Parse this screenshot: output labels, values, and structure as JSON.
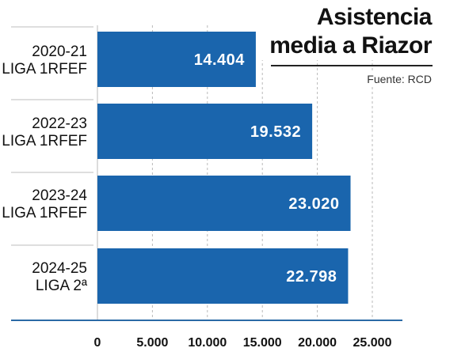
{
  "chart_data": {
    "type": "bar",
    "orientation": "horizontal",
    "title": [
      "Asistencia",
      "media a Riazor"
    ],
    "source": "Fuente: RCD",
    "categories": [
      [
        "2020-21",
        "LIGA 1RFEF"
      ],
      [
        "2022-23",
        "LIGA 1RFEF"
      ],
      [
        "2023-24",
        "LIGA 1RFEF"
      ],
      [
        "2024-25",
        "LIGA 2ª"
      ]
    ],
    "values": [
      14404,
      19532,
      23020,
      22798
    ],
    "value_labels": [
      "14.404",
      "19.532",
      "23.020",
      "22.798"
    ],
    "xlim": [
      0,
      25000
    ],
    "xticks": [
      0,
      5000,
      10000,
      15000,
      20000,
      25000
    ],
    "xtick_labels": [
      "0",
      "5.000",
      "10.000",
      "15.000",
      "20.000",
      "25.000"
    ],
    "grid": "vertical dashed",
    "colors": {
      "bar": "#1a65ad",
      "axis": "#2b6aa6",
      "grid": "#b9b9b9",
      "separator": "#bdbdbd",
      "label": "#111111",
      "value": "#ffffff"
    }
  }
}
